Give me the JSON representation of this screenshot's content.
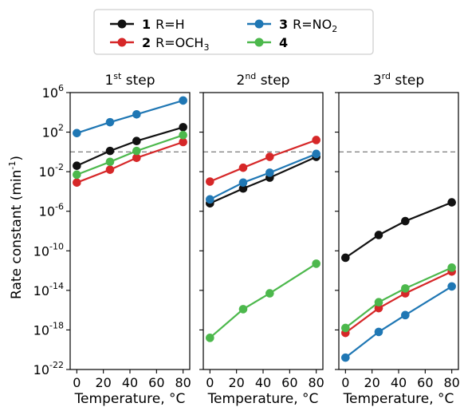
{
  "chart_data": {
    "type": "line",
    "ylabel": "Rate constant (min",
    "ylabel_sup": "-1",
    "ylabel_end": ")",
    "xlabel": "Temperature, °C",
    "yscale": "log",
    "ylim_exp": [
      -22,
      6
    ],
    "ytick_exps": [
      -22,
      -18,
      -14,
      -10,
      -6,
      -2,
      2,
      6
    ],
    "ytick_base": "10",
    "xlim": [
      -5,
      85
    ],
    "xticks": [
      0,
      20,
      40,
      60,
      80
    ],
    "reference_line_exp": 0,
    "legend": [
      {
        "bold": "1",
        "pre": "R=H",
        "sub": "",
        "post": "",
        "color": "#111111"
      },
      {
        "bold": "2",
        "pre": "R=OCH",
        "sub": "3",
        "post": "",
        "color": "#d62728"
      },
      {
        "bold": "3",
        "pre": "R=NO",
        "sub": "2",
        "post": "",
        "color": "#1f77b4"
      },
      {
        "bold": "4",
        "pre": "",
        "sub": "",
        "post": "",
        "color": "#4cb84c"
      }
    ],
    "panels": [
      {
        "title_num": "1",
        "title_sup": "st",
        "title_rest": " step",
        "series": [
          {
            "id": "1",
            "color": "#111111",
            "points": [
              [
                0,
                -1.4
              ],
              [
                25,
                0.1
              ],
              [
                45,
                1.1
              ],
              [
                80,
                2.5
              ]
            ]
          },
          {
            "id": "2",
            "color": "#d62728",
            "points": [
              [
                0,
                -3.1
              ],
              [
                25,
                -1.8
              ],
              [
                45,
                -0.6
              ],
              [
                80,
                1.0
              ]
            ]
          },
          {
            "id": "3",
            "color": "#1f77b4",
            "points": [
              [
                0,
                1.9
              ],
              [
                25,
                3.0
              ],
              [
                45,
                3.8
              ],
              [
                80,
                5.2
              ]
            ]
          },
          {
            "id": "4",
            "color": "#4cb84c",
            "points": [
              [
                0,
                -2.3
              ],
              [
                25,
                -1.0
              ],
              [
                45,
                0.1
              ],
              [
                80,
                1.7
              ]
            ]
          }
        ]
      },
      {
        "title_num": "2",
        "title_sup": "nd",
        "title_rest": " step",
        "series": [
          {
            "id": "1",
            "color": "#111111",
            "points": [
              [
                0,
                -5.2
              ],
              [
                25,
                -3.7
              ],
              [
                45,
                -2.6
              ],
              [
                80,
                -0.5
              ]
            ]
          },
          {
            "id": "2",
            "color": "#d62728",
            "points": [
              [
                0,
                -3.0
              ],
              [
                25,
                -1.6
              ],
              [
                45,
                -0.5
              ],
              [
                80,
                1.2
              ]
            ]
          },
          {
            "id": "3",
            "color": "#1f77b4",
            "points": [
              [
                0,
                -4.8
              ],
              [
                25,
                -3.1
              ],
              [
                45,
                -2.1
              ],
              [
                80,
                -0.2
              ]
            ]
          },
          {
            "id": "4",
            "color": "#4cb84c",
            "points": [
              [
                0,
                -18.8
              ],
              [
                25,
                -15.9
              ],
              [
                45,
                -14.3
              ],
              [
                80,
                -11.3
              ]
            ]
          }
        ]
      },
      {
        "title_num": "3",
        "title_sup": "rd",
        "title_rest": " step",
        "series": [
          {
            "id": "1",
            "color": "#111111",
            "points": [
              [
                0,
                -10.7
              ],
              [
                25,
                -8.4
              ],
              [
                45,
                -7.0
              ],
              [
                80,
                -5.1
              ]
            ]
          },
          {
            "id": "2",
            "color": "#d62728",
            "points": [
              [
                0,
                -18.3
              ],
              [
                25,
                -15.8
              ],
              [
                45,
                -14.3
              ],
              [
                80,
                -12.1
              ]
            ]
          },
          {
            "id": "3",
            "color": "#1f77b4",
            "points": [
              [
                0,
                -20.8
              ],
              [
                25,
                -18.2
              ],
              [
                45,
                -16.5
              ],
              [
                80,
                -13.6
              ]
            ]
          },
          {
            "id": "4",
            "color": "#4cb84c",
            "points": [
              [
                0,
                -17.8
              ],
              [
                25,
                -15.2
              ],
              [
                45,
                -13.8
              ],
              [
                80,
                -11.7
              ]
            ]
          }
        ]
      }
    ]
  }
}
